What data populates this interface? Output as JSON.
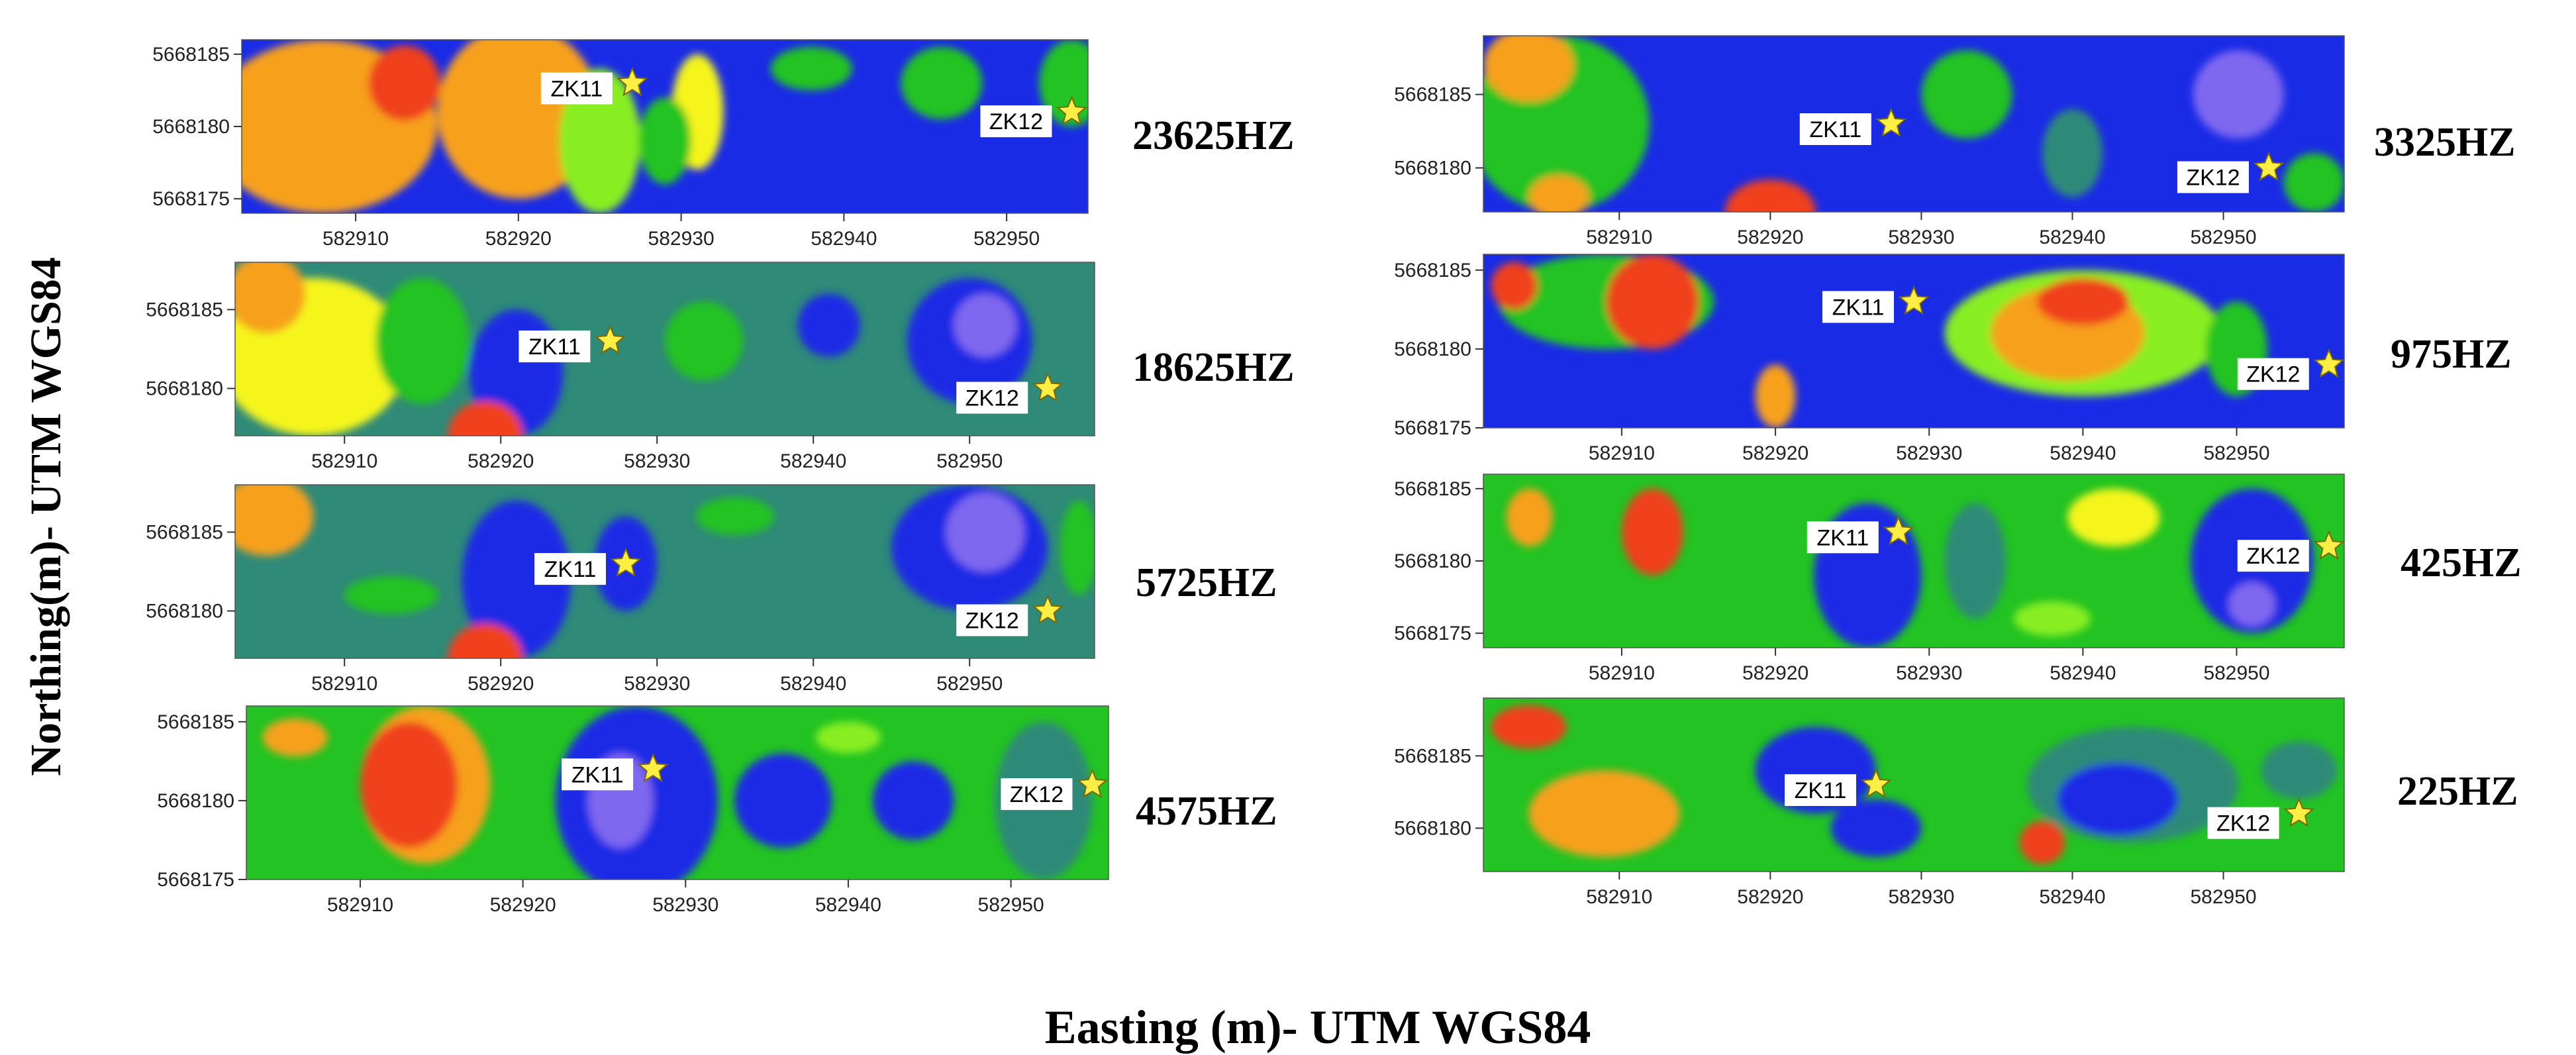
{
  "axes": {
    "y_title": "Northing(m)- UTM WGS84",
    "x_title": "Easting (m)- UTM WGS84"
  },
  "colors": {
    "blue": "#1a2be6",
    "purple": "#7f68f0",
    "teal": "#2f8a78",
    "green": "#22c322",
    "light_green": "#88ee22",
    "yellow": "#f5f51a",
    "orange": "#f7a01e",
    "red": "#f0401c",
    "star_fill": "#ffee44",
    "star_stroke": "#7a6a00"
  },
  "map_data": {
    "type": "contour_map_panels",
    "panels": [
      {
        "frequency_label": "23625HZ",
        "x_ticks": [
          "582910",
          "582920",
          "582930",
          "582940",
          "582950"
        ],
        "y_ticks": [
          "5668185",
          "5668180",
          "5668175"
        ],
        "x_range": [
          582903,
          582955
        ],
        "y_range": [
          5668174,
          5668186
        ],
        "boreholes": [
          {
            "name": "ZK11",
            "easting": 582927,
            "northing": 5668183
          },
          {
            "name": "ZK12",
            "easting": 582954,
            "northing": 5668181
          }
        ],
        "base_color": "#1a2be6",
        "zones": [
          {
            "cx": 582908,
            "cy": 5668180,
            "rx": 7,
            "ry": 6,
            "color": "#f7a01e"
          },
          {
            "cx": 582920,
            "cy": 5668181,
            "rx": 5,
            "ry": 6,
            "color": "#f7a01e"
          },
          {
            "cx": 582913,
            "cy": 5668183,
            "rx": 2.2,
            "ry": 2.6,
            "color": "#f0401c"
          },
          {
            "cx": 582925,
            "cy": 5668179,
            "rx": 2.5,
            "ry": 5,
            "color": "#88ee22"
          },
          {
            "cx": 582931,
            "cy": 5668181,
            "rx": 1.6,
            "ry": 4,
            "color": "#f5f51a"
          },
          {
            "cx": 582929,
            "cy": 5668179,
            "rx": 1.6,
            "ry": 3,
            "color": "#22c322"
          },
          {
            "cx": 582938,
            "cy": 5668184,
            "rx": 2.5,
            "ry": 1.5,
            "color": "#22c322"
          },
          {
            "cx": 582946,
            "cy": 5668183,
            "rx": 2.5,
            "ry": 2.5,
            "color": "#22c322"
          },
          {
            "cx": 582954,
            "cy": 5668183,
            "rx": 2,
            "ry": 3,
            "color": "#22c322"
          }
        ]
      },
      {
        "frequency_label": "18625HZ",
        "x_ticks": [
          "582910",
          "582920",
          "582930",
          "582940",
          "582950"
        ],
        "y_ticks": [
          "5668185",
          "5668180"
        ],
        "x_range": [
          582903,
          582958
        ],
        "y_range": [
          5668177,
          5668188
        ],
        "boreholes": [
          {
            "name": "ZK11",
            "easting": 582927,
            "northing": 5668183
          },
          {
            "name": "ZK12",
            "easting": 582955,
            "northing": 5668180
          }
        ],
        "base_color": "#2f8a78",
        "zones": [
          {
            "cx": 582908,
            "cy": 5668182,
            "rx": 6,
            "ry": 5,
            "color": "#f5f51a"
          },
          {
            "cx": 582905,
            "cy": 5668186,
            "rx": 2.5,
            "ry": 2.5,
            "color": "#f7a01e"
          },
          {
            "cx": 582915,
            "cy": 5668183,
            "rx": 3,
            "ry": 4,
            "color": "#22c322"
          },
          {
            "cx": 582921,
            "cy": 5668181,
            "rx": 3,
            "ry": 4,
            "color": "#1a2be6"
          },
          {
            "cx": 582919,
            "cy": 5668177,
            "rx": 2.4,
            "ry": 2.2,
            "color": "#f0401c"
          },
          {
            "cx": 582933,
            "cy": 5668183,
            "rx": 2.5,
            "ry": 2.5,
            "color": "#22c322"
          },
          {
            "cx": 582941,
            "cy": 5668184,
            "rx": 2,
            "ry": 2,
            "color": "#1a2be6"
          },
          {
            "cx": 582950,
            "cy": 5668183,
            "rx": 4,
            "ry": 4,
            "color": "#1a2be6"
          },
          {
            "cx": 582951,
            "cy": 5668184,
            "rx": 2,
            "ry": 2,
            "color": "#7f68f0"
          }
        ]
      },
      {
        "frequency_label": "5725HZ",
        "x_ticks": [
          "582910",
          "582920",
          "582930",
          "582940",
          "582950"
        ],
        "y_ticks": [
          "5668185",
          "5668180"
        ],
        "x_range": [
          582903,
          582958
        ],
        "y_range": [
          5668177,
          5668188
        ],
        "boreholes": [
          {
            "name": "ZK11",
            "easting": 582928,
            "northing": 5668183
          },
          {
            "name": "ZK12",
            "easting": 582955,
            "northing": 5668180
          }
        ],
        "base_color": "#2f8a78",
        "zones": [
          {
            "cx": 582905,
            "cy": 5668186,
            "rx": 3,
            "ry": 2.5,
            "color": "#f7a01e"
          },
          {
            "cx": 582921,
            "cy": 5668182,
            "rx": 3.5,
            "ry": 5,
            "color": "#1a2be6"
          },
          {
            "cx": 582919,
            "cy": 5668177,
            "rx": 2.4,
            "ry": 2.2,
            "color": "#f0401c"
          },
          {
            "cx": 582928,
            "cy": 5668183,
            "rx": 2,
            "ry": 3,
            "color": "#1a2be6"
          },
          {
            "cx": 582913,
            "cy": 5668181,
            "rx": 3,
            "ry": 1.2,
            "color": "#22c322"
          },
          {
            "cx": 582935,
            "cy": 5668186,
            "rx": 2.5,
            "ry": 1.2,
            "color": "#22c322"
          },
          {
            "cx": 582950,
            "cy": 5668184,
            "rx": 5,
            "ry": 4,
            "color": "#1a2be6"
          },
          {
            "cx": 582951,
            "cy": 5668185,
            "rx": 2.5,
            "ry": 2.5,
            "color": "#7f68f0"
          },
          {
            "cx": 582957,
            "cy": 5668184,
            "rx": 1.2,
            "ry": 3,
            "color": "#22c322"
          }
        ]
      },
      {
        "frequency_label": "4575HZ",
        "x_ticks": [
          "582910",
          "582920",
          "582930",
          "582940",
          "582950"
        ],
        "y_ticks": [
          "5668185",
          "5668180",
          "5668175"
        ],
        "x_range": [
          582903,
          582956
        ],
        "y_range": [
          5668175,
          5668186
        ],
        "boreholes": [
          {
            "name": "ZK11",
            "easting": 582928,
            "northing": 5668182
          },
          {
            "name": "ZK12",
            "easting": 582955,
            "northing": 5668181
          }
        ],
        "base_color": "#22c322",
        "zones": [
          {
            "cx": 582914,
            "cy": 5668181,
            "rx": 4,
            "ry": 5,
            "color": "#f7a01e"
          },
          {
            "cx": 582913,
            "cy": 5668181,
            "rx": 3,
            "ry": 4,
            "color": "#f0401c"
          },
          {
            "cx": 582906,
            "cy": 5668184,
            "rx": 2,
            "ry": 1.2,
            "color": "#f7a01e"
          },
          {
            "cx": 582927,
            "cy": 5668180,
            "rx": 5,
            "ry": 6,
            "color": "#1a2be6"
          },
          {
            "cx": 582926,
            "cy": 5668180,
            "rx": 2,
            "ry": 3,
            "color": "#7f68f0"
          },
          {
            "cx": 582936,
            "cy": 5668180,
            "rx": 3,
            "ry": 3,
            "color": "#1a2be6"
          },
          {
            "cx": 582944,
            "cy": 5668180,
            "rx": 2.5,
            "ry": 2.5,
            "color": "#1a2be6"
          },
          {
            "cx": 582952,
            "cy": 5668180,
            "rx": 3,
            "ry": 5,
            "color": "#2f8a78"
          },
          {
            "cx": 582940,
            "cy": 5668184,
            "rx": 2,
            "ry": 1,
            "color": "#88ee22"
          }
        ]
      },
      {
        "frequency_label": "3325HZ",
        "x_ticks": [
          "582910",
          "582920",
          "582930",
          "582940",
          "582950"
        ],
        "y_ticks": [
          "5668185",
          "5668180"
        ],
        "x_range": [
          582901,
          582958
        ],
        "y_range": [
          5668177,
          5668189
        ],
        "boreholes": [
          {
            "name": "ZK11",
            "easting": 582928,
            "northing": 5668183
          },
          {
            "name": "ZK12",
            "easting": 582953,
            "northing": 5668180
          }
        ],
        "base_color": "#1a2be6",
        "zones": [
          {
            "cx": 582906,
            "cy": 5668183,
            "rx": 6,
            "ry": 6,
            "color": "#22c322"
          },
          {
            "cx": 582904,
            "cy": 5668187,
            "rx": 3,
            "ry": 2.5,
            "color": "#f7a01e"
          },
          {
            "cx": 582906,
            "cy": 5668178,
            "rx": 2,
            "ry": 1.5,
            "color": "#f7a01e"
          },
          {
            "cx": 582920,
            "cy": 5668177,
            "rx": 3,
            "ry": 2.2,
            "color": "#f0401c"
          },
          {
            "cx": 582933,
            "cy": 5668185,
            "rx": 3,
            "ry": 3,
            "color": "#22c322"
          },
          {
            "cx": 582940,
            "cy": 5668181,
            "rx": 2,
            "ry": 3,
            "color": "#2f8a78"
          },
          {
            "cx": 582951,
            "cy": 5668185,
            "rx": 3,
            "ry": 3,
            "color": "#7f68f0"
          },
          {
            "cx": 582956,
            "cy": 5668179,
            "rx": 2,
            "ry": 2,
            "color": "#22c322"
          }
        ]
      },
      {
        "frequency_label": "975HZ",
        "x_ticks": [
          "582910",
          "582920",
          "582930",
          "582940",
          "582950"
        ],
        "y_ticks": [
          "5668185",
          "5668180",
          "5668175"
        ],
        "x_range": [
          582901,
          582957
        ],
        "y_range": [
          5668175,
          5668186
        ],
        "boreholes": [
          {
            "name": "ZK11",
            "easting": 582929,
            "northing": 5668183
          },
          {
            "name": "ZK12",
            "easting": 582956,
            "northing": 5668179
          }
        ],
        "base_color": "#1a2be6",
        "zones": [
          {
            "cx": 582909,
            "cy": 5668183,
            "rx": 7,
            "ry": 3,
            "color": "#22c322"
          },
          {
            "cx": 582912,
            "cy": 5668183,
            "rx": 3,
            "ry": 3,
            "color": "#f0401c"
          },
          {
            "cx": 582903,
            "cy": 5668184,
            "rx": 1.5,
            "ry": 1.5,
            "color": "#f0401c"
          },
          {
            "cx": 582920,
            "cy": 5668177,
            "rx": 1.3,
            "ry": 2,
            "color": "#f7a01e"
          },
          {
            "cx": 582940,
            "cy": 5668181,
            "rx": 9,
            "ry": 4,
            "color": "#88ee22"
          },
          {
            "cx": 582939,
            "cy": 5668181,
            "rx": 5,
            "ry": 3,
            "color": "#f7a01e"
          },
          {
            "cx": 582940,
            "cy": 5668183,
            "rx": 3,
            "ry": 1.5,
            "color": "#f0401c"
          },
          {
            "cx": 582950,
            "cy": 5668180,
            "rx": 2,
            "ry": 3,
            "color": "#22c322"
          }
        ]
      },
      {
        "frequency_label": "425HZ",
        "x_ticks": [
          "582910",
          "582920",
          "582930",
          "582940",
          "582950"
        ],
        "y_ticks": [
          "5668185",
          "5668180",
          "5668175"
        ],
        "x_range": [
          582901,
          582957
        ],
        "y_range": [
          5668174,
          5668186
        ],
        "boreholes": [
          {
            "name": "ZK11",
            "easting": 582928,
            "northing": 5668182
          },
          {
            "name": "ZK12",
            "easting": 582956,
            "northing": 5668181
          }
        ],
        "base_color": "#22c322",
        "zones": [
          {
            "cx": 582912,
            "cy": 5668182,
            "rx": 2,
            "ry": 3,
            "color": "#f0401c"
          },
          {
            "cx": 582904,
            "cy": 5668183,
            "rx": 1.5,
            "ry": 2,
            "color": "#f7a01e"
          },
          {
            "cx": 582926,
            "cy": 5668179,
            "rx": 3.5,
            "ry": 5,
            "color": "#1a2be6"
          },
          {
            "cx": 582933,
            "cy": 5668180,
            "rx": 2,
            "ry": 4,
            "color": "#2f8a78"
          },
          {
            "cx": 582942,
            "cy": 5668183,
            "rx": 3,
            "ry": 2,
            "color": "#f5f51a"
          },
          {
            "cx": 582951,
            "cy": 5668180,
            "rx": 4,
            "ry": 5,
            "color": "#1a2be6"
          },
          {
            "cx": 582951,
            "cy": 5668177,
            "rx": 1.5,
            "ry": 1.5,
            "color": "#7f68f0"
          },
          {
            "cx": 582938,
            "cy": 5668176,
            "rx": 2.5,
            "ry": 1.2,
            "color": "#88ee22"
          }
        ]
      },
      {
        "frequency_label": "225HZ",
        "x_ticks": [
          "582910",
          "582920",
          "582930",
          "582940",
          "582950"
        ],
        "y_ticks": [
          "5668185",
          "5668180"
        ],
        "x_range": [
          582901,
          582958
        ],
        "y_range": [
          5668177,
          5668189
        ],
        "boreholes": [
          {
            "name": "ZK11",
            "easting": 582927,
            "northing": 5668183
          },
          {
            "name": "ZK12",
            "easting": 582955,
            "northing": 5668181
          }
        ],
        "base_color": "#22c322",
        "zones": [
          {
            "cx": 582909,
            "cy": 5668181,
            "rx": 5,
            "ry": 3,
            "color": "#f7a01e"
          },
          {
            "cx": 582904,
            "cy": 5668187,
            "rx": 2.5,
            "ry": 1.5,
            "color": "#f0401c"
          },
          {
            "cx": 582923,
            "cy": 5668184,
            "rx": 4,
            "ry": 3,
            "color": "#1a2be6"
          },
          {
            "cx": 582927,
            "cy": 5668180,
            "rx": 3,
            "ry": 2,
            "color": "#1a2be6"
          },
          {
            "cx": 582944,
            "cy": 5668183,
            "rx": 7,
            "ry": 4,
            "color": "#2f8a78"
          },
          {
            "cx": 582943,
            "cy": 5668182,
            "rx": 4,
            "ry": 2.5,
            "color": "#1a2be6"
          },
          {
            "cx": 582955,
            "cy": 5668184,
            "rx": 2.5,
            "ry": 2,
            "color": "#2f8a78"
          },
          {
            "cx": 582938,
            "cy": 5668179,
            "rx": 1.5,
            "ry": 1.5,
            "color": "#f0401c"
          }
        ]
      }
    ]
  }
}
